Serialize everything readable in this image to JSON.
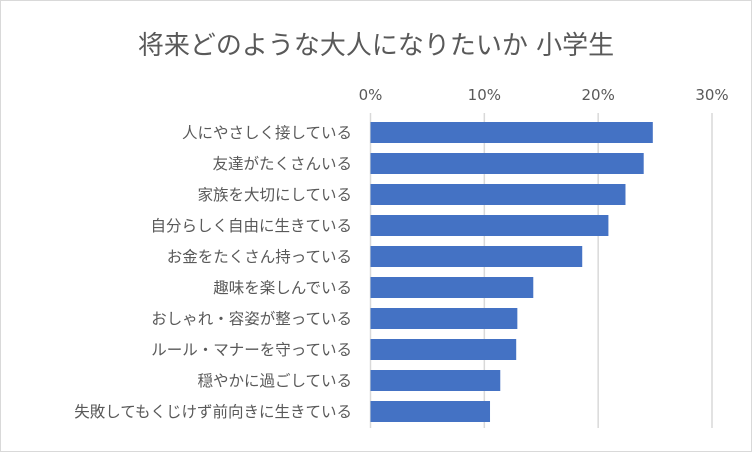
{
  "chart_data": {
    "type": "bar",
    "orientation": "horizontal",
    "title": "将来どのような大人になりたいか 小学生",
    "categories": [
      "人にやさしく接している",
      "友達がたくさんいる",
      "家族を大切にしている",
      "自分らしく自由に生きている",
      "お金をたくさん持っている",
      "趣味を楽しんでいる",
      "おしゃれ・容姿が整っている",
      "ルール・マナーを守っている",
      "穏やかに過ごしている",
      "失敗してもくじけず前向きに生きている"
    ],
    "values": [
      24.8,
      24.0,
      22.4,
      20.9,
      18.6,
      14.3,
      12.9,
      12.8,
      11.4,
      10.5
    ],
    "xlim": [
      0,
      30
    ],
    "ticks": [
      "0%",
      "10%",
      "20%",
      "30%"
    ],
    "tick_values": [
      0,
      10,
      20,
      30
    ],
    "axis_position": "top",
    "grid": true,
    "bar_color": "#4472C4",
    "grid_color": "#D9D9D9"
  }
}
